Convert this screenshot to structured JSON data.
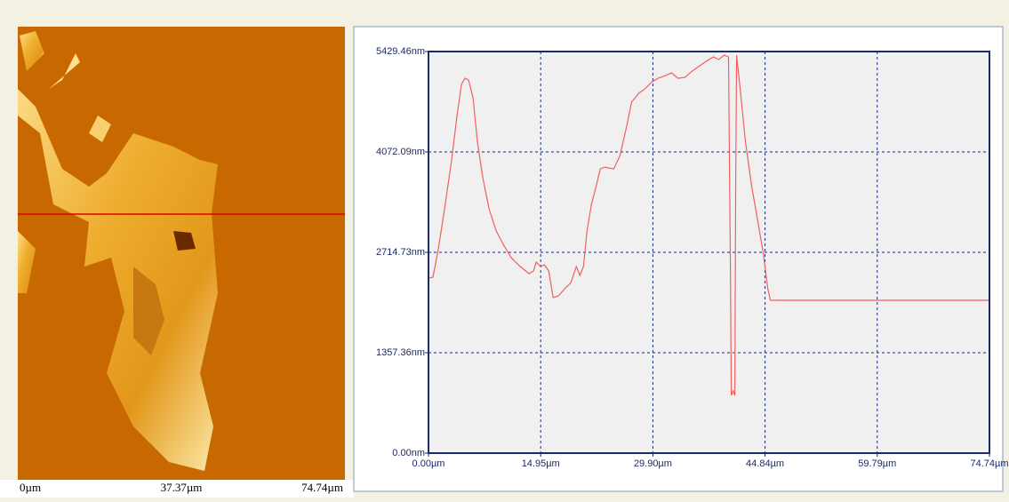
{
  "image_axis_labels": [
    "0µm",
    "37.37µm",
    "74.74µm"
  ],
  "chart_data": {
    "type": "line",
    "color": "#f06060",
    "grid": true,
    "xlim": [
      0,
      74.74
    ],
    "ylim": [
      0,
      5429.46
    ],
    "xticks": [
      {
        "value": 0,
        "label": "0.00µm"
      },
      {
        "value": 14.95,
        "label": "14.95µm"
      },
      {
        "value": 29.9,
        "label": "29.90µm"
      },
      {
        "value": 44.84,
        "label": "44.84µm"
      },
      {
        "value": 59.79,
        "label": "59.79µm"
      },
      {
        "value": 74.74,
        "label": "74.74µm"
      }
    ],
    "yticks": [
      {
        "value": 0,
        "label": "0.00nm"
      },
      {
        "value": 1357.36,
        "label": "1357.36nm"
      },
      {
        "value": 2714.73,
        "label": "2714.73nm"
      },
      {
        "value": 4072.09,
        "label": "4072.09nm"
      },
      {
        "value": 5429.46,
        "label": "5429.46nm"
      }
    ],
    "x": [
      0,
      0.59,
      1.31,
      2.14,
      3.08,
      3.8,
      4.39,
      4.86,
      5.34,
      5.93,
      6.53,
      7.24,
      8.07,
      9.02,
      9.97,
      11.03,
      12.22,
      13.41,
      14.0,
      14.36,
      14.95,
      15.42,
      16.02,
      16.61,
      17.32,
      18.15,
      18.98,
      19.7,
      20.17,
      20.65,
      21.12,
      21.71,
      22.31,
      22.9,
      23.49,
      24.68,
      25.51,
      26.46,
      27.05,
      28.0,
      28.83,
      29.78,
      30.61,
      31.56,
      32.39,
      33.22,
      34.17,
      35.12,
      35.95,
      37.14,
      37.97,
      38.68,
      39.39,
      39.98,
      40.22,
      40.34,
      40.58,
      40.82,
      40.93,
      41.05,
      41.53,
      42.24,
      43.07,
      43.9,
      44.61,
      45.21,
      45.56,
      74.74
    ],
    "values": [
      2366,
      2378,
      2762,
      3303,
      3963,
      4564,
      4984,
      5068,
      5044,
      4804,
      4204,
      3723,
      3303,
      3003,
      2822,
      2642,
      2522,
      2426,
      2462,
      2582,
      2522,
      2546,
      2462,
      2102,
      2126,
      2222,
      2306,
      2522,
      2402,
      2522,
      3003,
      3363,
      3603,
      3843,
      3867,
      3843,
      4023,
      4444,
      4744,
      4864,
      4924,
      5020,
      5068,
      5104,
      5140,
      5068,
      5080,
      5164,
      5224,
      5308,
      5356,
      5320,
      5380,
      5356,
      2522,
      781,
      841,
      781,
      3723,
      5380,
      4924,
      4204,
      3603,
      3123,
      2702,
      2222,
      2066,
      2066
    ]
  }
}
